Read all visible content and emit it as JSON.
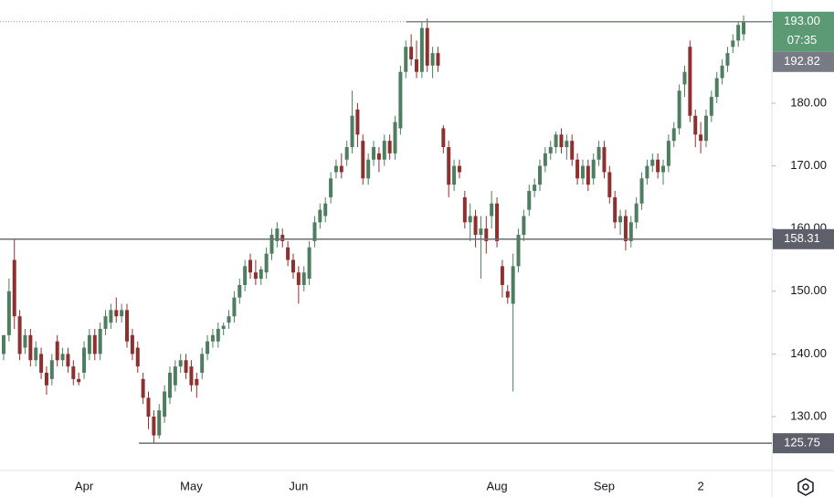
{
  "chart_data": {
    "type": "candlestick",
    "up_color": "#4e7d60",
    "down_color": "#8f3030",
    "ylim": [
      121.4,
      196.47
    ],
    "yticks": [
      {
        "value": 130,
        "label": "130.00"
      },
      {
        "value": 140,
        "label": "140.00"
      },
      {
        "value": 150,
        "label": "150.00"
      },
      {
        "value": 160,
        "label": "160.00"
      },
      {
        "value": 170,
        "label": "170.00"
      },
      {
        "value": 180,
        "label": "180.00"
      }
    ],
    "categories": [
      null,
      null,
      null,
      null,
      null,
      null,
      null,
      null,
      null,
      null,
      null,
      null,
      null,
      null,
      null,
      "Apr",
      null,
      null,
      null,
      null,
      null,
      null,
      null,
      null,
      null,
      null,
      null,
      null,
      null,
      null,
      null,
      null,
      null,
      null,
      null,
      "May",
      null,
      null,
      null,
      null,
      null,
      null,
      null,
      null,
      null,
      null,
      null,
      null,
      null,
      null,
      null,
      null,
      null,
      null,
      null,
      "Jun",
      null,
      null,
      null,
      null,
      null,
      null,
      null,
      null,
      null,
      null,
      null,
      null,
      null,
      null,
      null,
      null,
      null,
      null,
      null,
      null,
      null,
      null,
      null,
      null,
      null,
      null,
      null,
      null,
      null,
      null,
      null,
      null,
      null,
      null,
      null,
      null,
      "Aug",
      null,
      null,
      null,
      null,
      null,
      null,
      null,
      null,
      null,
      null,
      null,
      null,
      null,
      null,
      null,
      null,
      null,
      null,
      null,
      "Sep",
      null,
      null,
      null,
      null,
      null,
      null,
      null,
      null,
      null,
      null,
      null,
      null,
      null,
      null,
      null,
      null,
      null,
      "2",
      null,
      null,
      null,
      null,
      null,
      null,
      null,
      null
    ],
    "candles": [
      [
        140,
        143,
        139,
        143
      ],
      [
        143,
        152,
        142,
        150
      ],
      [
        155,
        158.3,
        144,
        146
      ],
      [
        146,
        147,
        139,
        140
      ],
      [
        141,
        144,
        140,
        143
      ],
      [
        143,
        144,
        138,
        139
      ],
      [
        139,
        142,
        138,
        141
      ],
      [
        140,
        141,
        136,
        137
      ],
      [
        137,
        138,
        133.5,
        135
      ],
      [
        136,
        140,
        135,
        139
      ],
      [
        142,
        143,
        138,
        139
      ],
      [
        139,
        141,
        138,
        140
      ],
      [
        140,
        141,
        137,
        138
      ],
      [
        138,
        139,
        135,
        136
      ],
      [
        136,
        137,
        135,
        135.5
      ],
      [
        137,
        142,
        136,
        141
      ],
      [
        140,
        144,
        139,
        143
      ],
      [
        143,
        144,
        139,
        140
      ],
      [
        140,
        145,
        139,
        144
      ],
      [
        144,
        147,
        143,
        146
      ],
      [
        145,
        148,
        144,
        147
      ],
      [
        147,
        149,
        145,
        146
      ],
      [
        146,
        148,
        145,
        147
      ],
      [
        147,
        148,
        141,
        142
      ],
      [
        143,
        144,
        139,
        140
      ],
      [
        141,
        142,
        137,
        138
      ],
      [
        136,
        137,
        132,
        133
      ],
      [
        133,
        134,
        128,
        130
      ],
      [
        130,
        131,
        125.75,
        127
      ],
      [
        127,
        132,
        126.5,
        131
      ],
      [
        130,
        135,
        129,
        134
      ],
      [
        133,
        138,
        132,
        137
      ],
      [
        135,
        139,
        134,
        138
      ],
      [
        138,
        140,
        137,
        139
      ],
      [
        139,
        140,
        136,
        137
      ],
      [
        138,
        139,
        134,
        135
      ],
      [
        136,
        137,
        133,
        135
      ],
      [
        137,
        141,
        136,
        140
      ],
      [
        140,
        143,
        139,
        142
      ],
      [
        142,
        144,
        141,
        143
      ],
      [
        142,
        145,
        141,
        144
      ],
      [
        144,
        145,
        143,
        144.5
      ],
      [
        145,
        147,
        144,
        146
      ],
      [
        146,
        150,
        145,
        149
      ],
      [
        149,
        152,
        148,
        151
      ],
      [
        151,
        155,
        150,
        154
      ],
      [
        155,
        156,
        152,
        153
      ],
      [
        153,
        155,
        151,
        152
      ],
      [
        152,
        154,
        151,
        153.5
      ],
      [
        153,
        157,
        152,
        156
      ],
      [
        156,
        160,
        155,
        159
      ],
      [
        158,
        161,
        157,
        160
      ],
      [
        159,
        160,
        157,
        158
      ],
      [
        157,
        158,
        154,
        155
      ],
      [
        155,
        156,
        152,
        153
      ],
      [
        153,
        154,
        148,
        151
      ],
      [
        151,
        154,
        150,
        153
      ],
      [
        152,
        158,
        151,
        157
      ],
      [
        158,
        162,
        157,
        161
      ],
      [
        161,
        164,
        160,
        163
      ],
      [
        162,
        165,
        161,
        164
      ],
      [
        165,
        169,
        164,
        168
      ],
      [
        169,
        171,
        168,
        170
      ],
      [
        170,
        172,
        168,
        169
      ],
      [
        171,
        174,
        170,
        173
      ],
      [
        173,
        182,
        172,
        178
      ],
      [
        179,
        180,
        173,
        175
      ],
      [
        174,
        175,
        167,
        168
      ],
      [
        168,
        172,
        167,
        171
      ],
      [
        171,
        174,
        170,
        173
      ],
      [
        172,
        173,
        169,
        171
      ],
      [
        171,
        175,
        170,
        174
      ],
      [
        174,
        175,
        171,
        172
      ],
      [
        172,
        178,
        171,
        177
      ],
      [
        176,
        186,
        175,
        185
      ],
      [
        185,
        190,
        184,
        189
      ],
      [
        189,
        191,
        186,
        187
      ],
      [
        187,
        190,
        184,
        185
      ],
      [
        185,
        193,
        184,
        192
      ],
      [
        192,
        193.5,
        185,
        186
      ],
      [
        186,
        189,
        184,
        188
      ],
      [
        188,
        189,
        185,
        186
      ],
      [
        176,
        176.5,
        172,
        173
      ],
      [
        173,
        174,
        165,
        167
      ],
      [
        167,
        171,
        166,
        170
      ],
      [
        170,
        171,
        168,
        169
      ],
      [
        165,
        166,
        160,
        161
      ],
      [
        161,
        164,
        158,
        162
      ],
      [
        162,
        163,
        157,
        159
      ],
      [
        159,
        162,
        152,
        160
      ],
      [
        160,
        162,
        156,
        158
      ],
      [
        162,
        166,
        160,
        164
      ],
      [
        164,
        165,
        157,
        158
      ],
      [
        154,
        155,
        149,
        151
      ],
      [
        150,
        151,
        148,
        149
      ],
      [
        148,
        156,
        134,
        154
      ],
      [
        154,
        160,
        153,
        159
      ],
      [
        159,
        163,
        158,
        162
      ],
      [
        163,
        167,
        162,
        166
      ],
      [
        166,
        168,
        165,
        167
      ],
      [
        167,
        171,
        166,
        170
      ],
      [
        170,
        173,
        169,
        172
      ],
      [
        172,
        174,
        171,
        173
      ],
      [
        173,
        175.5,
        172,
        175
      ],
      [
        175,
        176,
        172,
        173
      ],
      [
        173,
        175,
        171,
        174
      ],
      [
        174,
        175,
        170,
        171
      ],
      [
        171,
        172,
        167,
        168
      ],
      [
        168,
        171,
        167,
        170
      ],
      [
        170,
        171,
        166,
        167
      ],
      [
        168,
        172,
        167,
        171
      ],
      [
        171,
        174,
        170,
        173
      ],
      [
        173,
        174,
        168,
        169
      ],
      [
        169,
        170,
        164,
        165
      ],
      [
        165,
        166,
        160,
        161
      ],
      [
        161,
        163,
        159,
        162
      ],
      [
        162,
        163,
        156.5,
        158
      ],
      [
        158,
        162,
        157,
        161
      ],
      [
        161,
        165,
        160,
        164
      ],
      [
        164,
        169,
        163,
        168
      ],
      [
        168,
        171,
        167,
        170
      ],
      [
        170,
        172,
        169,
        171
      ],
      [
        171,
        172,
        168,
        169
      ],
      [
        169,
        171,
        167,
        170
      ],
      [
        170,
        175,
        169,
        174
      ],
      [
        174,
        177,
        173,
        176
      ],
      [
        176,
        183,
        175,
        182
      ],
      [
        183,
        186,
        181,
        185
      ],
      [
        189,
        190,
        177,
        178
      ],
      [
        178,
        179,
        173,
        175
      ],
      [
        175,
        177,
        172,
        174
      ],
      [
        174,
        179,
        173,
        178
      ],
      [
        178,
        182,
        177,
        181
      ],
      [
        181,
        185,
        180,
        184
      ],
      [
        184,
        187,
        183,
        186
      ],
      [
        186,
        189,
        185,
        188
      ],
      [
        189,
        191,
        188,
        190
      ],
      [
        190,
        193,
        189,
        192.5
      ],
      [
        191,
        194,
        190,
        193
      ]
    ],
    "price_lines": [
      {
        "value": 193.0,
        "label": "193.00",
        "countdown": "07:35",
        "color": "#5b9a74"
      },
      {
        "value": 192.82,
        "color": "#787b86"
      },
      {
        "value": 158.31,
        "color": "#5d606b"
      },
      {
        "value": 125.75,
        "color": "#5d606b"
      }
    ]
  }
}
